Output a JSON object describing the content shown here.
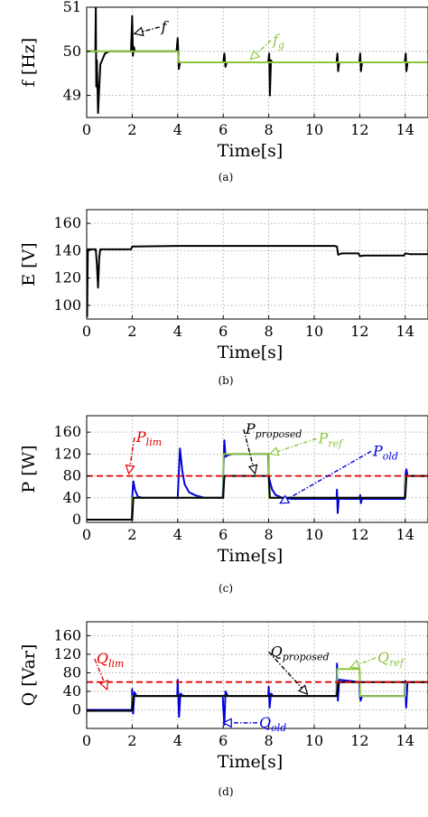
{
  "colors": {
    "black": "#000000",
    "green": "#8cc63f",
    "blue": "#0000dd",
    "red": "#e60000"
  },
  "chart_data": [
    {
      "type": "line",
      "caption": "(a)",
      "xlabel": "Time[s]",
      "ylabel": "f [Hz]",
      "xlim": [
        0,
        15
      ],
      "ylim": [
        48.5,
        51
      ],
      "xticks": [
        0,
        2,
        4,
        6,
        8,
        10,
        12,
        14
      ],
      "yticks": [
        49,
        50,
        51
      ],
      "grid": true,
      "series": [
        {
          "name": "f",
          "color": "black",
          "x": [
            0,
            0.38,
            0.4,
            0.42,
            0.45,
            0.5,
            0.6,
            0.8,
            1.0,
            1.95,
            2.0,
            2.03,
            2.07,
            2.12,
            3.95,
            4.0,
            4.05,
            4.1,
            4.2,
            6.0,
            6.05,
            6.1,
            6.15,
            7.98,
            8.02,
            8.05,
            8.1,
            8.15,
            10.98,
            11.02,
            11.05,
            11.1,
            11.98,
            12.02,
            12.05,
            12.1,
            13.98,
            14.02,
            14.05,
            14.1,
            15
          ],
          "y": [
            50,
            50,
            51,
            49.2,
            49.8,
            48.6,
            49.7,
            49.95,
            50,
            50,
            50.8,
            49.9,
            50.1,
            50,
            50,
            50.3,
            49.6,
            49.75,
            49.75,
            49.75,
            49.95,
            49.65,
            49.75,
            49.75,
            49.95,
            49.0,
            49.8,
            49.75,
            49.75,
            49.95,
            49.55,
            49.75,
            49.75,
            49.95,
            49.55,
            49.75,
            49.75,
            49.95,
            49.55,
            49.75,
            49.75
          ]
        },
        {
          "name": "f_g",
          "color": "green",
          "x": [
            0,
            4,
            4.05,
            15
          ],
          "y": [
            50,
            50,
            49.75,
            49.75
          ]
        }
      ],
      "annotations": [
        {
          "text": "f",
          "sub": "",
          "color": "black",
          "label_at": [
            3.2,
            50.55
          ],
          "arrow_to": [
            2.1,
            50.4
          ]
        },
        {
          "text": "f",
          "sub": "g",
          "color": "green",
          "label_at": [
            8.1,
            50.25
          ],
          "arrow_to": [
            7.2,
            49.82
          ]
        }
      ]
    },
    {
      "type": "line",
      "caption": "(b)",
      "xlabel": "Time[s]",
      "ylabel": "E [V]",
      "xlim": [
        0,
        15
      ],
      "ylim": [
        90,
        170
      ],
      "xticks": [
        0,
        2,
        4,
        6,
        8,
        10,
        12,
        14
      ],
      "yticks": [
        100,
        120,
        140,
        160
      ],
      "grid": true,
      "series": [
        {
          "name": "E",
          "color": "black",
          "x": [
            0,
            0.02,
            0.05,
            0.1,
            0.4,
            0.45,
            0.5,
            0.55,
            0.6,
            0.7,
            1.95,
            2.0,
            2.1,
            4.0,
            8.0,
            10.9,
            11.0,
            11.05,
            11.2,
            11.95,
            12.0,
            12.2,
            13.95,
            14.0,
            14.2,
            15
          ],
          "y": [
            140,
            92,
            141,
            141,
            141,
            130,
            113,
            135,
            141,
            141,
            141,
            143,
            143,
            143.5,
            143.5,
            143.5,
            143,
            137,
            138,
            138,
            136,
            136.5,
            136.5,
            138,
            137.5,
            137.5
          ]
        }
      ],
      "annotations": []
    },
    {
      "type": "line",
      "caption": "(c)",
      "xlabel": "Time[s]",
      "ylabel": "P [W]",
      "xlim": [
        0,
        15
      ],
      "ylim": [
        -5,
        190
      ],
      "xticks": [
        0,
        2,
        4,
        6,
        8,
        10,
        12,
        14
      ],
      "yticks": [
        0,
        40,
        80,
        120,
        160
      ],
      "grid": true,
      "series": [
        {
          "name": "P_old",
          "color": "blue",
          "x": [
            0,
            1.98,
            2.0,
            2.05,
            2.12,
            2.25,
            2.5,
            3.95,
            4.0,
            4.1,
            4.2,
            4.3,
            4.5,
            4.8,
            5.2,
            5.98,
            6.0,
            6.05,
            6.1,
            6.2,
            6.4,
            7.98,
            8.0,
            8.05,
            8.15,
            8.3,
            8.6,
            9.0,
            10.98,
            11.0,
            11.03,
            11.08,
            11.15,
            11.98,
            12.02,
            12.05,
            12.1,
            13.98,
            14.0,
            14.05,
            14.1,
            15
          ],
          "y": [
            0,
            0,
            40,
            70,
            55,
            42,
            40,
            40,
            40,
            130,
            90,
            65,
            50,
            44,
            40,
            40,
            80,
            145,
            115,
            118,
            120,
            120,
            80,
            70,
            55,
            45,
            40,
            38,
            38,
            55,
            12,
            40,
            38,
            38,
            45,
            30,
            38,
            38,
            80,
            92,
            80,
            80
          ]
        },
        {
          "name": "P_ref",
          "color": "green",
          "x": [
            0,
            2,
            2.01,
            6,
            6.01,
            8,
            8.01,
            14,
            14.01,
            15
          ],
          "y": [
            0,
            0,
            40,
            40,
            120,
            120,
            40,
            40,
            80,
            80
          ]
        },
        {
          "name": "P_proposed",
          "color": "black",
          "x": [
            0,
            2,
            2.05,
            6,
            6.05,
            8,
            8.05,
            14,
            14.05,
            15
          ],
          "y": [
            0,
            0,
            40,
            40,
            80,
            80,
            40,
            40,
            80,
            80
          ]
        },
        {
          "name": "P_lim",
          "color": "red",
          "dashed": true,
          "x": [
            0,
            15
          ],
          "y": [
            80,
            80
          ]
        }
      ],
      "annotations": [
        {
          "text": "P",
          "sub": "lim",
          "color": "red",
          "label_at": [
            2.1,
            150
          ],
          "arrow_to": [
            1.85,
            84
          ]
        },
        {
          "text": "P",
          "sub": "proposed",
          "color": "black",
          "label_at": [
            6.9,
            165
          ],
          "arrow_to": [
            7.4,
            84
          ]
        },
        {
          "text": "P",
          "sub": "ref",
          "color": "green",
          "label_at": [
            10.1,
            148
          ],
          "arrow_to": [
            8.05,
            120
          ]
        },
        {
          "text": "P",
          "sub": "old",
          "color": "blue",
          "label_at": [
            12.5,
            125
          ],
          "arrow_to": [
            8.5,
            30
          ]
        }
      ]
    },
    {
      "type": "line",
      "caption": "(d)",
      "xlabel": "Time[s]",
      "ylabel": "Q [Var]",
      "xlim": [
        0,
        15
      ],
      "ylim": [
        -40,
        190
      ],
      "xticks": [
        0,
        2,
        4,
        6,
        8,
        10,
        12,
        14
      ],
      "yticks": [
        0,
        40,
        80,
        120,
        160
      ],
      "grid": true,
      "series": [
        {
          "name": "Q_old",
          "color": "blue",
          "x": [
            0,
            1.98,
            2.0,
            2.04,
            2.1,
            2.2,
            3.98,
            4.0,
            4.06,
            4.12,
            4.25,
            5.98,
            6.0,
            6.05,
            6.1,
            6.2,
            7.98,
            8.0,
            8.04,
            8.1,
            8.2,
            10.98,
            11.0,
            11.04,
            11.1,
            11.98,
            12.0,
            12.04,
            12.1,
            13.98,
            14.0,
            14.04,
            14.1,
            15
          ],
          "y": [
            0,
            0,
            45,
            -8,
            38,
            30,
            30,
            65,
            -15,
            35,
            30,
            30,
            5,
            -32,
            40,
            30,
            30,
            50,
            5,
            35,
            30,
            30,
            100,
            20,
            65,
            60,
            30,
            20,
            30,
            30,
            63,
            5,
            60,
            60
          ]
        },
        {
          "name": "Q_ref",
          "color": "green",
          "x": [
            0,
            2,
            2.01,
            11,
            11.01,
            12,
            12.01,
            14,
            14.01,
            15
          ],
          "y": [
            -2,
            -2,
            30,
            30,
            88,
            88,
            30,
            30,
            60,
            60
          ]
        },
        {
          "name": "Q_proposed",
          "color": "black",
          "x": [
            0,
            2,
            2.05,
            11,
            11.05,
            14,
            14.05,
            15
          ],
          "y": [
            -2,
            -2,
            30,
            30,
            60,
            60,
            60,
            60
          ]
        },
        {
          "name": "Q_lim",
          "color": "red",
          "dashed": true,
          "x": [
            0,
            15
          ],
          "y": [
            60,
            60
          ]
        }
      ],
      "annotations": [
        {
          "text": "Q",
          "sub": "lim",
          "color": "red",
          "label_at": [
            0.35,
            110
          ],
          "arrow_to": [
            0.9,
            44
          ]
        },
        {
          "text": "Q",
          "sub": "proposed",
          "color": "black",
          "label_at": [
            8.0,
            125
          ],
          "arrow_to": [
            9.7,
            34
          ]
        },
        {
          "text": "Q",
          "sub": "ref",
          "color": "green",
          "label_at": [
            12.7,
            112
          ],
          "arrow_to": [
            11.6,
            92
          ]
        },
        {
          "text": "Q",
          "sub": "old",
          "color": "blue",
          "label_at": [
            7.5,
            -28
          ],
          "arrow_to": [
            6.0,
            -28
          ]
        }
      ]
    }
  ]
}
